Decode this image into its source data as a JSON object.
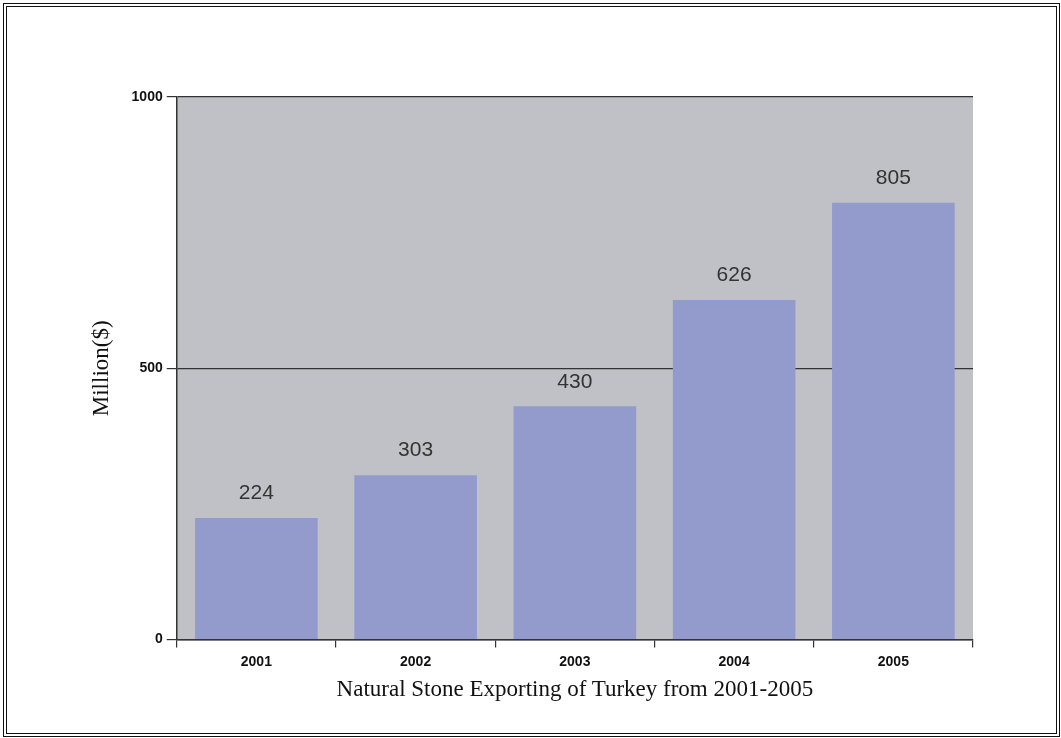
{
  "chart_data": {
    "type": "bar",
    "xlabel": "Natural Stone Exporting of Turkey from 2001-2005",
    "ylabel": "Million($)",
    "categories": [
      "2001",
      "2002",
      "2003",
      "2004",
      "2005"
    ],
    "values": [
      224,
      303,
      430,
      626,
      805
    ],
    "color": "#939bcc",
    "ylim": [
      0,
      1000
    ],
    "yticks": [
      0,
      500,
      1000
    ],
    "grid": "y",
    "data_labels": true
  }
}
